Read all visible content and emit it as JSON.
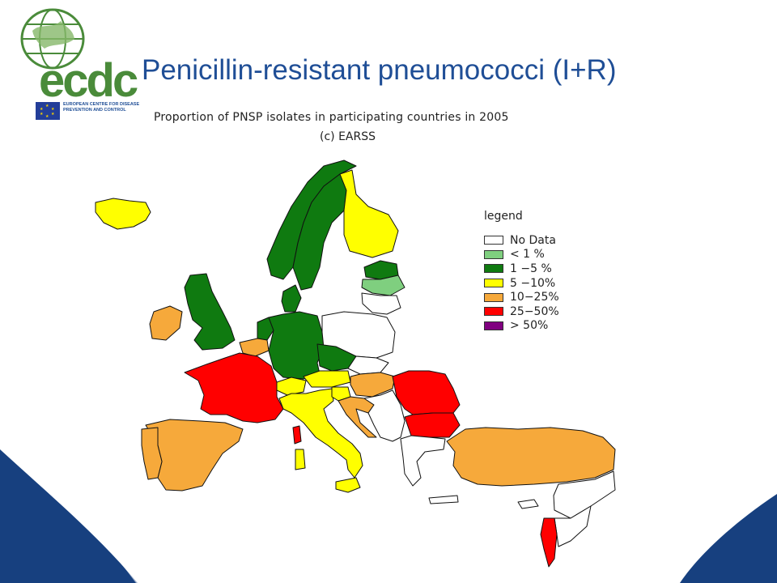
{
  "slide": {
    "title": "Penicillin-resistant pneumococci (I+R)"
  },
  "logo": {
    "wordmark": "ecdc",
    "subtitle": "EUROPEAN CENTRE FOR DISEASE PREVENTION AND CONTROL"
  },
  "map": {
    "title": "Proportion of PNSP isolates in participating countries in 2005",
    "credit": "(c) EARSS",
    "legend_title": "legend",
    "legend": [
      {
        "label": "No Data",
        "color": "#ffffff"
      },
      {
        "label": "< 1 %",
        "color": "#7fcf7f"
      },
      {
        "label": "1 −5 %",
        "color": "#0f7a10"
      },
      {
        "label": "5 −10%",
        "color": "#ffff00"
      },
      {
        "label": "10−25%",
        "color": "#f6a93b"
      },
      {
        "label": "25−50%",
        "color": "#ff0000"
      },
      {
        "label": "> 50%",
        "color": "#800080"
      }
    ],
    "country_categories": {
      "Iceland": "5 −10%",
      "Ireland": "10−25%",
      "United Kingdom": "1 −5 %",
      "Norway": "1 −5 %",
      "Sweden": "1 −5 %",
      "Finland": "5 −10%",
      "Estonia": "1 −5 %",
      "Latvia": "< 1 %",
      "Denmark": "1 −5 %",
      "Netherlands": "1 −5 %",
      "Belgium": "10−25%",
      "Luxembourg": "10−25%",
      "Germany": "1 −5 %",
      "Czech Republic": "1 −5 %",
      "Austria": "5 −10%",
      "Switzerland": "5 −10%",
      "France": "25−50%",
      "Spain": "10−25%",
      "Portugal": "10−25%",
      "Italy": "5 −10%",
      "Slovenia": "5 −10%",
      "Croatia": "10−25%",
      "Hungary": "10−25%",
      "Romania": "25−50%",
      "Bulgaria": "25−50%",
      "Turkey": "10−25%",
      "Corsica": "25−50%",
      "Israel": "25−50%",
      "Poland": "No Data",
      "Lithuania": "No Data",
      "Slovakia": "No Data",
      "Serbia": "No Data",
      "Greece": "No Data",
      "Cyprus": "No Data",
      "Syria": "No Data",
      "Jordan": "No Data"
    }
  },
  "colors": {
    "title": "#1f4e96",
    "swoosh": "#17407f",
    "border": "#111111"
  }
}
